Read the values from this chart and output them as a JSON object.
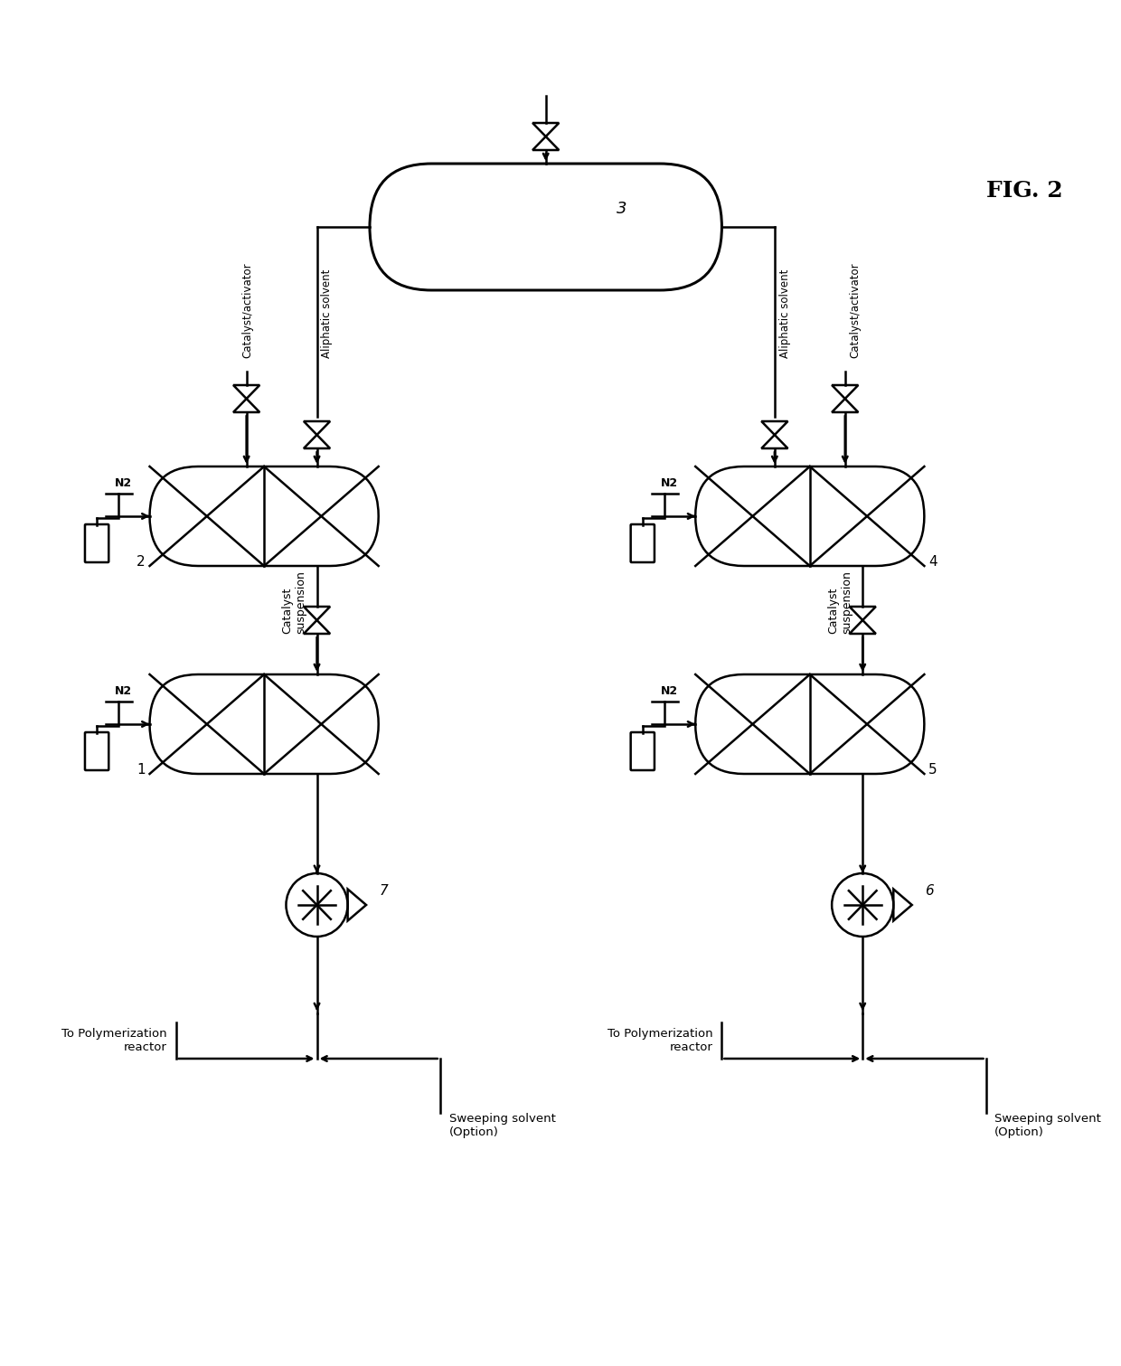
{
  "title": "FIG. 2",
  "background_color": "#ffffff",
  "line_color": "#000000",
  "line_width": 1.8,
  "fig_width": 12.4,
  "fig_height": 15.11,
  "labels": {
    "fig_label": "FIG. 2",
    "node3": "3",
    "node4": "4",
    "node2": "2",
    "node1": "1",
    "node5": "5",
    "node6": "6",
    "node7": "7",
    "catalyst_activator_left": "Catalyst/activator",
    "catalyst_activator_right": "Catalyst/activator",
    "aliphatic_solvent_left": "Aliphatic solvent",
    "aliphatic_solvent_right": "Aliphatic solvent",
    "catalyst_suspension_left": "Catalyst\nsuspension",
    "catalyst_suspension_right": "Catalyst\nsuspension",
    "n2_left_top": "N2",
    "n2_right_top": "N2",
    "n2_left_bottom": "N2",
    "n2_right_bottom": "N2",
    "to_poly_left": "To Polymerization\nreactor",
    "to_poly_right": "To Polymerization\nreactor",
    "sweeping_left": "Sweeping solvent\n(Option)",
    "sweeping_right": "Sweeping solvent\n(Option)"
  }
}
